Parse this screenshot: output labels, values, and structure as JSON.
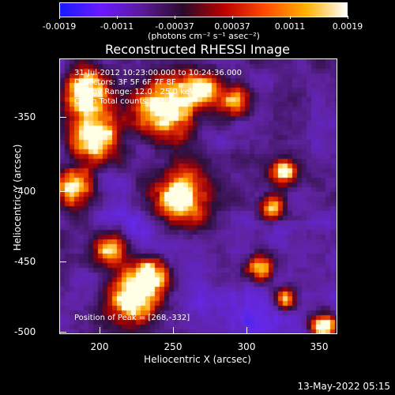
{
  "colorbar": {
    "ticks": [
      "-0.0019",
      "-0.0011",
      "-0.00037",
      "0.00037",
      "0.0011",
      "0.0019"
    ],
    "units": "(photons cm⁻² s⁻¹ asec⁻²)",
    "colors": [
      "#1a1aff",
      "#6a1aff",
      "#5a1a99",
      "#2a0a2a",
      "#b80000",
      "#ff4a00",
      "#ffb000",
      "#ffffff"
    ]
  },
  "title": "Reconstructed RHESSI Image",
  "annotation": {
    "line1": "31-Jul-2012 10:23:00.000 to 10:24:36.000",
    "line2": "Detectors: 3F 5F 6F 7F 8F",
    "line3": "Energy Range: 12.0 - 25.0 keV",
    "line4": "Clean    Total counts: 4.36E+03",
    "peak": "Position of Peak = [268,-332]"
  },
  "axes": {
    "xlabel": "Heliocentric X (arcsec)",
    "ylabel": "Heliocentric Y (arcsec)",
    "xticks": [
      "200",
      "250",
      "300",
      "350"
    ],
    "yticks": [
      "-350",
      "-400",
      "-450",
      "-500"
    ]
  },
  "timestamp": "13-May-2022 05:15"
}
